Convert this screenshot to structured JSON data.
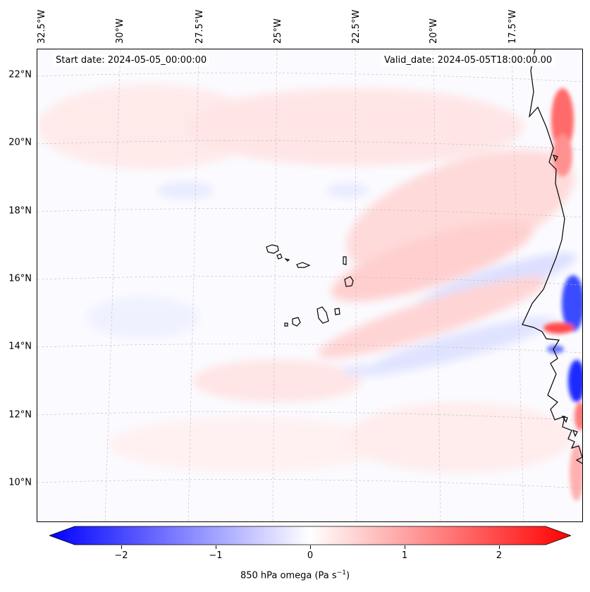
{
  "map": {
    "start_date": "Start date: 2024-05-05_00:00:00",
    "valid_date": "Valid_date: 2024-05-05T18:00:00.00",
    "lat_labels": [
      "22°N",
      "20°N",
      "18°N",
      "16°N",
      "14°N",
      "12°N",
      "10°N"
    ],
    "lon_labels": [
      "32.5°W",
      "30°W",
      "27.5°W",
      "25°W",
      "22.5°W",
      "20°W",
      "17.5°W"
    ],
    "islands_region": "Cape Verde",
    "coastline_region": "West Africa (Mauritania, Senegal, Gambia, Guinea-Bissau)"
  },
  "colorbar": {
    "ticks": [
      "−2",
      "−1",
      "0",
      "1",
      "2"
    ],
    "tick_values": [
      -2,
      -1,
      0,
      1,
      2
    ],
    "range": [
      -2.6,
      2.6
    ],
    "label_main": "850 hPa omega (Pa s",
    "label_exp": "−1",
    "label_close": ")",
    "colors": {
      "min": "#0000ff",
      "mid": "#ffffff",
      "max": "#ff0000"
    }
  }
}
